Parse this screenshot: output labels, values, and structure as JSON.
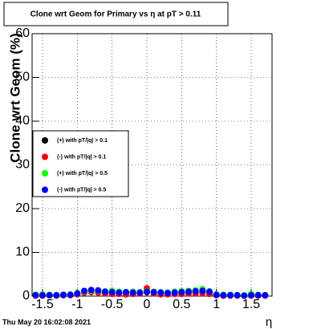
{
  "chart_data": {
    "type": "scatter",
    "title": "Clone wrt Geom for Primary vs   η at pT > 0.11",
    "y_label": "Clone wrt Geom (%)",
    "x_label": "η",
    "timestamp": "Thu May 20 16:02:08 2021",
    "x": [
      -1.6,
      -1.5,
      -1.4,
      -1.3,
      -1.2,
      -1.1,
      -1.0,
      -0.9,
      -0.8,
      -0.7,
      -0.6,
      -0.5,
      -0.4,
      -0.3,
      -0.2,
      -0.1,
      0,
      0.1,
      0.2,
      0.3,
      0.4,
      0.5,
      0.6,
      0.7,
      0.8,
      0.9,
      1.0,
      1.1,
      1.2,
      1.3,
      1.4,
      1.5,
      1.6,
      1.7
    ],
    "series": [
      {
        "name": "(+) with pT/|q| > 0.1",
        "color": "#000000",
        "values": [
          0.2,
          0.2,
          0.2,
          0.2,
          0.2,
          0.3,
          0.5,
          1.0,
          1.2,
          1.1,
          0.9,
          0.8,
          0.7,
          0.8,
          0.7,
          0.7,
          0.9,
          0.8,
          0.7,
          0.6,
          0.7,
          0.8,
          0.9,
          1.0,
          1.1,
          0.9,
          0.3,
          0.2,
          0.2,
          0.2,
          0.1,
          0.2,
          0.2,
          0.2
        ]
      },
      {
        "name": "(-) with pT/|q| > 0.1",
        "color": "#ff0000",
        "values": [
          0.1,
          0.1,
          0.2,
          0.1,
          0.2,
          0.2,
          0.4,
          0.8,
          0.9,
          0.8,
          0.6,
          0.5,
          0.5,
          0.4,
          0.5,
          0.6,
          1.8,
          0.6,
          0.4,
          0.4,
          0.5,
          0.5,
          0.6,
          0.6,
          0.7,
          0.5,
          0.2,
          0.1,
          0.1,
          0.1,
          0.1,
          0.1,
          0.1,
          0.1
        ]
      },
      {
        "name": "(+) with pT/|q| > 0.5",
        "color": "#00ff00",
        "values": [
          0.3,
          0.4,
          0.3,
          0.2,
          0.3,
          0.4,
          0.7,
          1.1,
          1.2,
          1.2,
          1.1,
          1.2,
          1.0,
          0.9,
          1.0,
          0.9,
          1.1,
          1.0,
          0.9,
          0.8,
          1.0,
          1.1,
          1.2,
          1.3,
          1.6,
          1.1,
          0.4,
          0.3,
          0.3,
          0.2,
          0.2,
          0.5,
          0.3,
          0.2
        ]
      },
      {
        "name": "(-) with pT/|q| > 0.5",
        "color": "#0000ff",
        "values": [
          0.2,
          0.2,
          0.2,
          0.2,
          0.3,
          0.3,
          0.6,
          1.2,
          1.4,
          1.3,
          1.0,
          0.9,
          0.8,
          0.9,
          0.8,
          0.8,
          1.0,
          0.9,
          0.8,
          0.7,
          0.8,
          0.9,
          1.0,
          1.1,
          1.2,
          1.0,
          0.3,
          0.2,
          0.2,
          0.2,
          0.1,
          0.2,
          0.2,
          0.2
        ]
      }
    ],
    "xlim": [
      -1.65,
      1.8
    ],
    "xticks": [
      -1.5,
      -1,
      -0.5,
      0,
      0.5,
      1,
      1.5
    ],
    "ylim": [
      0,
      60
    ],
    "yticks": [
      0,
      10,
      20,
      30,
      40,
      50,
      60
    ],
    "grid": true,
    "legend": "left"
  }
}
